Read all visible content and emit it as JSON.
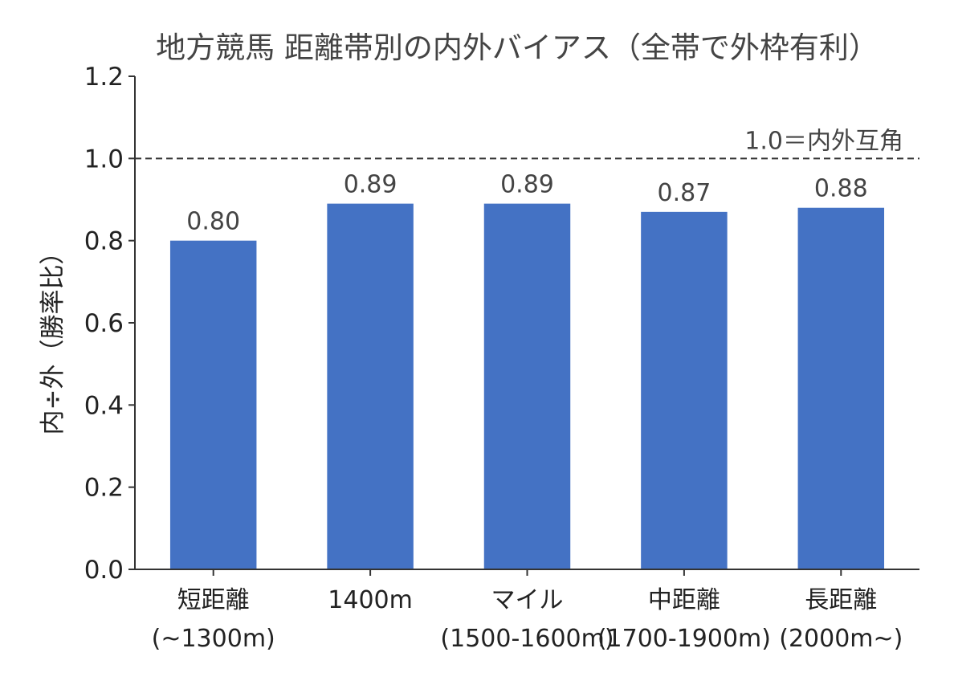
{
  "chart_data": {
    "type": "bar",
    "title": "地方競馬 距離帯別の内外バイアス（全帯で外枠有利）",
    "xlabel": "",
    "ylabel": "内÷外（勝率比）",
    "categories": [
      [
        "短距離",
        "(~1300m)"
      ],
      [
        "1400m"
      ],
      [
        "マイル",
        "(1500-1600m)"
      ],
      [
        "中距離",
        "(1700-1900m)"
      ],
      [
        "長距離",
        "(2000m~)"
      ]
    ],
    "values": [
      0.8,
      0.89,
      0.89,
      0.87,
      0.88
    ],
    "data_labels": [
      "0.80",
      "0.89",
      "0.89",
      "0.87",
      "0.88"
    ],
    "ylim": [
      0,
      1.2
    ],
    "yticks": [
      0.0,
      0.2,
      0.4,
      0.6,
      0.8,
      1.0,
      1.2
    ],
    "ytick_labels": [
      "0.0",
      "0.2",
      "0.4",
      "0.6",
      "0.8",
      "1.0",
      "1.2"
    ],
    "reference_line": {
      "value": 1.0,
      "label": "1.0＝内外互角"
    },
    "bar_color": "#4472c4",
    "grid": false,
    "legend": "none"
  }
}
